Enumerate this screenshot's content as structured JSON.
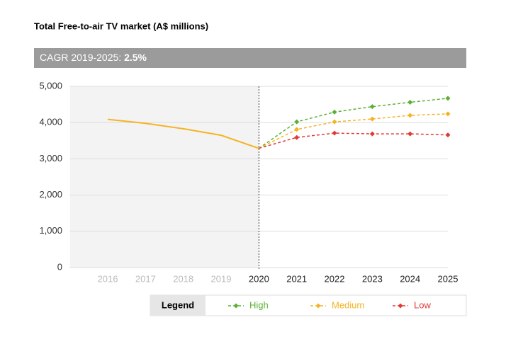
{
  "chart_data": {
    "type": "line",
    "title": "Total Free-to-air TV market (A$ millions)",
    "subtitle": "CAGR 2019-2025:",
    "subtitle_value": "2.5%",
    "x": [
      2016,
      2017,
      2018,
      2019,
      2020,
      2021,
      2022,
      2023,
      2024,
      2025
    ],
    "xlim": [
      2015,
      2025
    ],
    "ylim": [
      0,
      5000
    ],
    "yticks": [
      0,
      {
        "value": 1000,
        "label": "1,000"
      },
      {
        "value": 2000,
        "label": "2,000"
      },
      {
        "value": 3000,
        "label": "3,000"
      },
      {
        "value": 4000,
        "label": "4,000"
      },
      {
        "value": 5000,
        "label": "5,000"
      }
    ],
    "grid": true,
    "legend_title": "Legend",
    "series": [
      {
        "color": "#f5b324",
        "values": [
          4090,
          3980,
          3830,
          3650,
          3290,
          null,
          null,
          null,
          null,
          null
        ]
      },
      {
        "name": "High",
        "color": "#5ab032",
        "values": [
          null,
          null,
          null,
          null,
          3290,
          4020,
          4290,
          4440,
          4560,
          4670
        ]
      },
      {
        "name": "Medium",
        "color": "#f5b324",
        "values": [
          null,
          null,
          null,
          null,
          3290,
          3810,
          4020,
          4100,
          4200,
          4240
        ]
      },
      {
        "name": "Low",
        "color": "#e03a33",
        "values": [
          null,
          null,
          null,
          null,
          3290,
          3590,
          3710,
          3690,
          3690,
          3660
        ]
      }
    ]
  }
}
